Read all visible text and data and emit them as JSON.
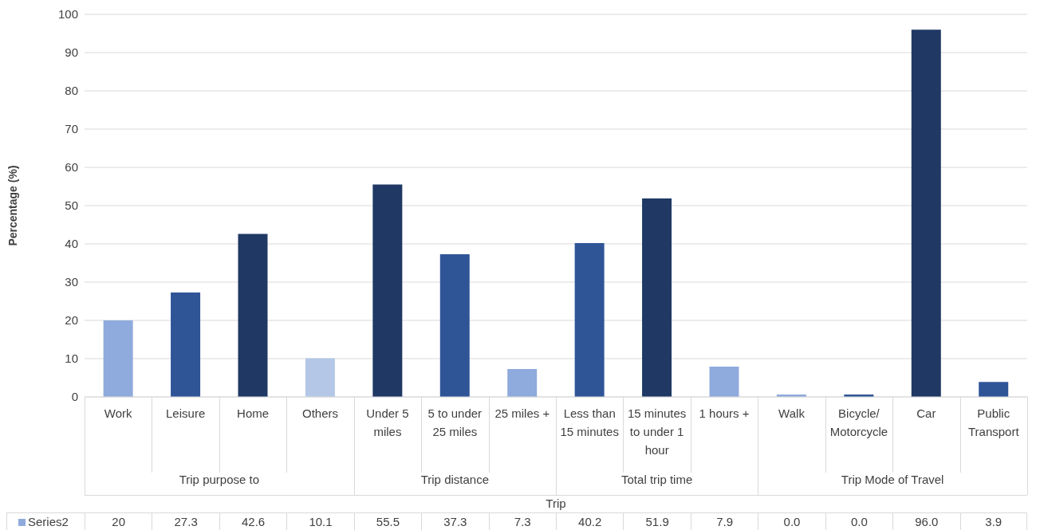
{
  "chart_data": {
    "type": "bar",
    "ylabel": "Percentage (%)",
    "xlabel": "Trip",
    "categories": [
      "Work",
      "Leisure",
      "Home",
      "Others",
      "Under 5 miles",
      "5 to under 25 miles",
      "25 miles +",
      "Less than 15 minutes",
      "15 minutes to under 1 hour",
      "1 hours +",
      "Walk",
      "Bicycle/ Motorcycle",
      "Car",
      "Public Transport"
    ],
    "annotations": [
      "Trip purpose to",
      "Trip distance",
      "Total trip time",
      "Trip Mode of Travel"
    ],
    "series": [
      {
        "name": "Series2",
        "color": "#8faadc",
        "values": [
          20,
          27.3,
          42.6,
          10.1,
          55.5,
          37.3,
          7.3,
          40.2,
          51.9,
          7.9,
          0.0,
          0.0,
          96.0,
          3.9
        ],
        "value_labels": [
          "20",
          "27.3",
          "42.6",
          "10.1",
          "55.5",
          "37.3",
          "7.3",
          "40.2",
          "51.9",
          "7.9",
          "0.0",
          "0.0",
          "96.0",
          "3.9"
        ],
        "colors": [
          "#8faadc",
          "#2f5597",
          "#1f3864",
          "#b4c7e7",
          "#1f3864",
          "#2f5597",
          "#8faadc",
          "#2f5597",
          "#1f3864",
          "#8faadc",
          "#8faadc",
          "#2f5597",
          "#1f3864",
          "#2f5597"
        ]
      }
    ],
    "ylim": [
      0,
      100
    ],
    "yticks": [
      0,
      10,
      20,
      30,
      40,
      50,
      60,
      70,
      80,
      90,
      100
    ],
    "grid": "y",
    "legend": "bottom"
  }
}
